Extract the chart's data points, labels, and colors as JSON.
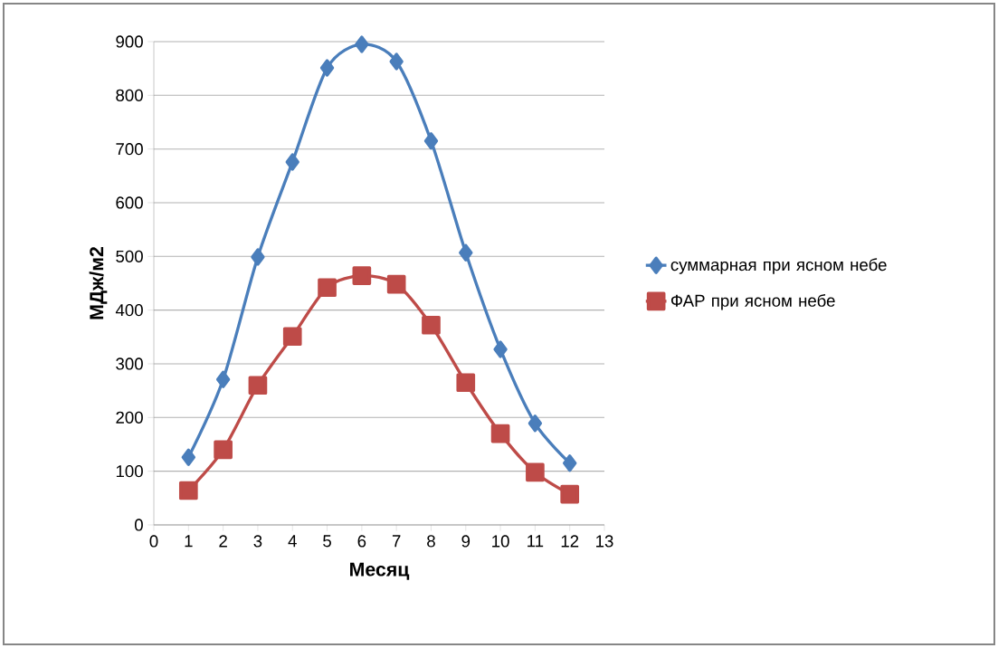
{
  "chart_data": {
    "type": "line",
    "xlabel": "Месяц",
    "ylabel": "МДж/м2",
    "x": [
      1,
      2,
      3,
      4,
      5,
      6,
      7,
      8,
      9,
      10,
      11,
      12
    ],
    "series": [
      {
        "name": "суммарная при ясном небе",
        "color": "#4a7ebb",
        "marker": "diamond",
        "values": [
          126,
          271,
          499,
          676,
          851,
          895,
          863,
          715,
          507,
          327,
          189,
          115
        ]
      },
      {
        "name": "ФАР при ясном небе",
        "color": "#be4b48",
        "marker": "square",
        "values": [
          64,
          140,
          260,
          351,
          442,
          464,
          448,
          372,
          265,
          170,
          98,
          57
        ]
      }
    ],
    "xlim": [
      0,
      13
    ],
    "xticks": [
      0,
      1,
      2,
      3,
      4,
      5,
      6,
      7,
      8,
      9,
      10,
      11,
      12,
      13
    ],
    "ylim": [
      0,
      900
    ],
    "yticks": [
      0,
      100,
      200,
      300,
      400,
      500,
      600,
      700,
      800,
      900
    ],
    "grid": "y",
    "legend": "right",
    "line_style": "solid"
  }
}
